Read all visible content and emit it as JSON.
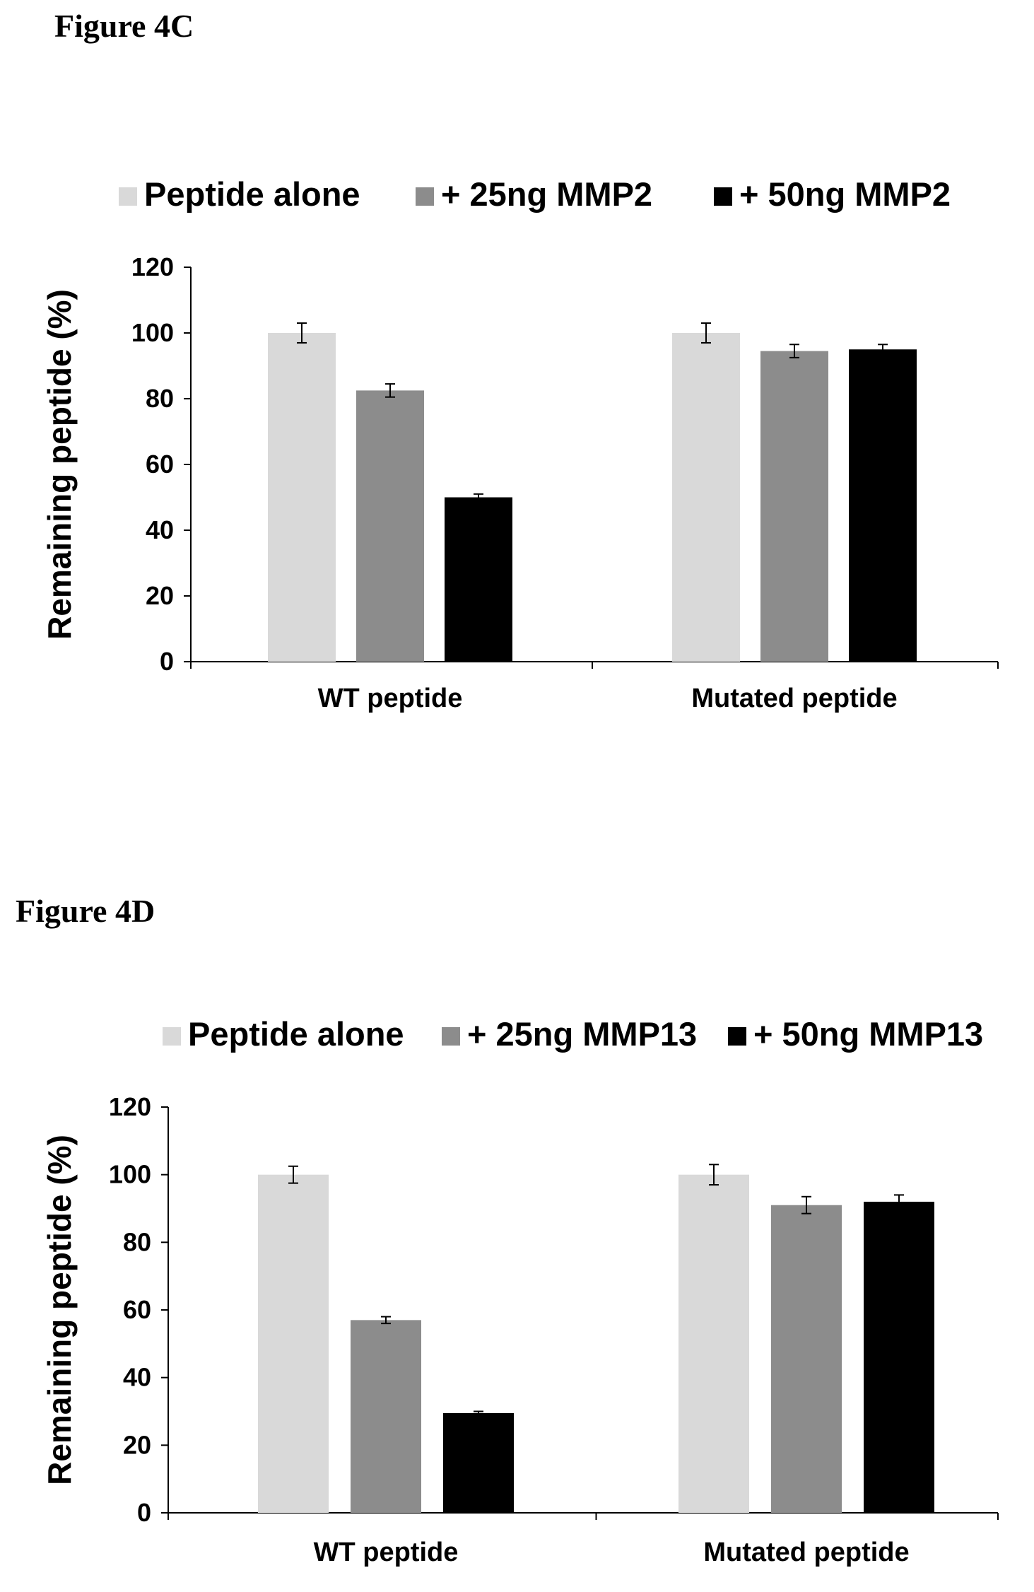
{
  "figures": [
    {
      "label": "Figure 4C"
    },
    {
      "label": "Figure 4D"
    }
  ],
  "colors": {
    "peptide_alone": "#d9d9d9",
    "low_dose": "#8c8c8c",
    "high_dose": "#000000",
    "error_bar": "#000000",
    "axis": "#000000"
  },
  "chart_data": [
    {
      "type": "bar",
      "categories": [
        "WT peptide",
        "Mutated peptide"
      ],
      "series": [
        {
          "name": "Peptide alone",
          "values": [
            100,
            100
          ],
          "errors": [
            3,
            3
          ]
        },
        {
          "name": "+ 25ng MMP2",
          "values": [
            82.5,
            94.5
          ],
          "errors": [
            2,
            2
          ]
        },
        {
          "name": "+ 50ng MMP2",
          "values": [
            50,
            95
          ],
          "errors": [
            1,
            1.5
          ]
        }
      ],
      "ylabel": "Remaining peptide (%)",
      "ylim": [
        0,
        120
      ],
      "yticks": [
        "0",
        "20",
        "40",
        "60",
        "80",
        "100",
        "120"
      ],
      "legend": "top",
      "grid": false
    },
    {
      "type": "bar",
      "categories": [
        "WT peptide",
        "Mutated peptide"
      ],
      "series": [
        {
          "name": "Peptide alone",
          "values": [
            100,
            100
          ],
          "errors": [
            2.5,
            3
          ]
        },
        {
          "name": "+ 25ng MMP13",
          "values": [
            57,
            91
          ],
          "errors": [
            1,
            2.5
          ]
        },
        {
          "name": "+ 50ng MMP13",
          "values": [
            29.5,
            92
          ],
          "errors": [
            0.5,
            2
          ]
        }
      ],
      "ylabel": "Remaining peptide (%)",
      "ylim": [
        0,
        120
      ],
      "yticks": [
        "0",
        "20",
        "40",
        "60",
        "80",
        "100",
        "120"
      ],
      "legend": "top",
      "grid": false
    }
  ]
}
